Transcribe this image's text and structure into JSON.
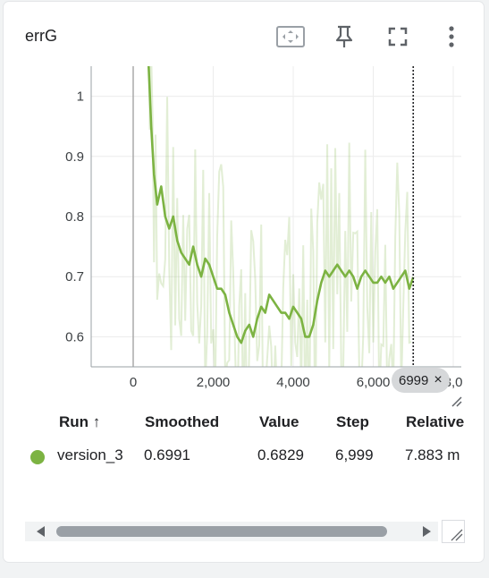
{
  "card": {
    "title": "errG",
    "toolbar": {
      "fit_icon": "fit-domain-icon",
      "pin_icon": "pin-icon",
      "fullscreen_icon": "fullscreen-icon",
      "more_icon": "more-vert-icon"
    }
  },
  "chart_data": {
    "type": "line",
    "title": "",
    "xlabel": "",
    "ylabel": "",
    "xlim": [
      -1050,
      8200
    ],
    "ylim": [
      0.55,
      1.05
    ],
    "x_ticks": [
      "0",
      "2,000",
      "4,000",
      "6,000",
      "8,0"
    ],
    "y_ticks": [
      "0.6",
      "0.7",
      "0.8",
      "0.9",
      "1"
    ],
    "grid": true,
    "hover_step": 6999,
    "series": [
      {
        "name": "version_3",
        "color": "#7cb342",
        "x": [
          380,
          450,
          520,
          600,
          700,
          800,
          900,
          1000,
          1100,
          1200,
          1300,
          1400,
          1500,
          1600,
          1700,
          1800,
          1900,
          2000,
          2100,
          2200,
          2300,
          2400,
          2500,
          2600,
          2700,
          2800,
          2900,
          3000,
          3100,
          3200,
          3300,
          3400,
          3500,
          3600,
          3700,
          3800,
          3900,
          4000,
          4100,
          4200,
          4300,
          4400,
          4500,
          4600,
          4700,
          4800,
          4900,
          5000,
          5100,
          5200,
          5300,
          5400,
          5500,
          5600,
          5700,
          5800,
          5900,
          6000,
          6100,
          6200,
          6300,
          6400,
          6500,
          6600,
          6700,
          6800,
          6900,
          6999
        ],
        "values": [
          1.06,
          0.95,
          0.87,
          0.82,
          0.85,
          0.8,
          0.78,
          0.8,
          0.76,
          0.74,
          0.73,
          0.72,
          0.75,
          0.72,
          0.7,
          0.73,
          0.72,
          0.7,
          0.68,
          0.68,
          0.67,
          0.64,
          0.62,
          0.6,
          0.59,
          0.61,
          0.62,
          0.6,
          0.63,
          0.65,
          0.64,
          0.67,
          0.66,
          0.65,
          0.64,
          0.64,
          0.63,
          0.65,
          0.64,
          0.63,
          0.6,
          0.6,
          0.62,
          0.66,
          0.69,
          0.71,
          0.7,
          0.71,
          0.72,
          0.71,
          0.7,
          0.71,
          0.7,
          0.68,
          0.7,
          0.71,
          0.7,
          0.69,
          0.69,
          0.7,
          0.69,
          0.7,
          0.68,
          0.69,
          0.7,
          0.71,
          0.68,
          0.6991
        ]
      }
    ]
  },
  "hover": {
    "label": "6999",
    "close": "×"
  },
  "table": {
    "headers": {
      "run": "Run ↑",
      "smoothed": "Smoothed",
      "value": "Value",
      "step": "Step",
      "relative": "Relative"
    },
    "rows": [
      {
        "color": "#7cb342",
        "run": "version_3",
        "smoothed": "0.6991",
        "value": "0.6829",
        "step": "6,999",
        "relative": "7.883 m"
      }
    ]
  }
}
